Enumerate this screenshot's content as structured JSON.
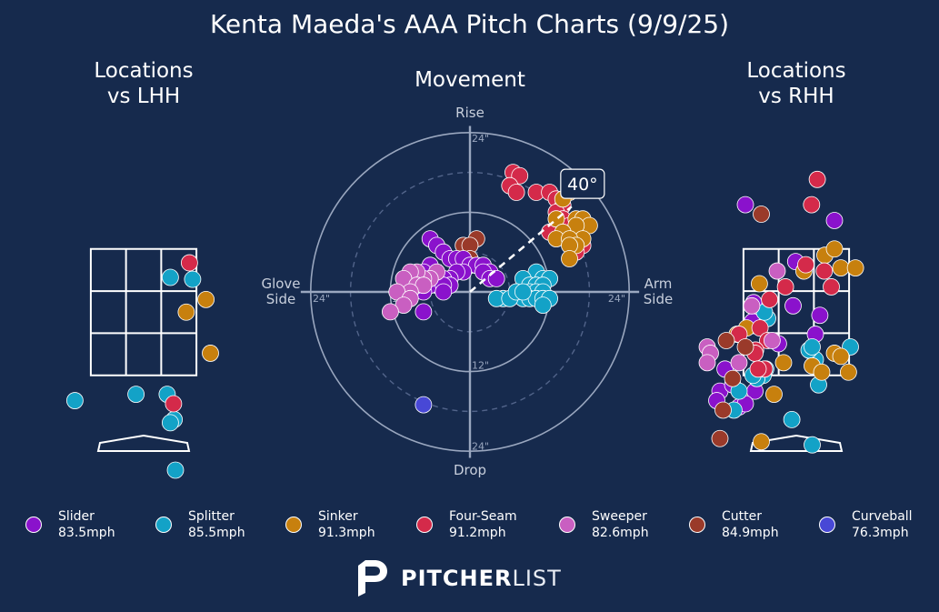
{
  "title": "Kenta Maeda's AAA Pitch Charts (9/9/25)",
  "panels": {
    "lhh_title_line1": "Locations",
    "lhh_title_line2": "vs LHH",
    "rhh_title_line1": "Locations",
    "rhh_title_line2": "vs RHH",
    "movement_title": "Movement"
  },
  "colors": {
    "background": "#162a4d",
    "Slider": "#8a12cc",
    "Splitter": "#13a2c7",
    "Sinker": "#c7800e",
    "Four-Seam": "#d42a4a",
    "Sweeper": "#c95fc1",
    "Cutter": "#9a3a2a",
    "Curveball": "#4848d6"
  },
  "legend": [
    {
      "name": "Slider",
      "speed": "83.5mph"
    },
    {
      "name": "Splitter",
      "speed": "85.5mph"
    },
    {
      "name": "Sinker",
      "speed": "91.3mph"
    },
    {
      "name": "Four-Seam",
      "speed": "91.2mph"
    },
    {
      "name": "Sweeper",
      "speed": "82.6mph"
    },
    {
      "name": "Cutter",
      "speed": "84.9mph"
    },
    {
      "name": "Curveball",
      "speed": "76.3mph"
    }
  ],
  "brand": {
    "bold": "PITCHER",
    "light": "LIST"
  },
  "chart_data": [
    {
      "type": "scatter",
      "title": "Locations vs LHH",
      "units": "feet",
      "xlim": [
        -2.0,
        2.0
      ],
      "ylim": [
        0.0,
        5.0
      ],
      "zone": {
        "x": [
          -0.83,
          0.83
        ],
        "z": [
          1.5,
          3.5
        ]
      },
      "series": [
        {
          "name": "Splitter",
          "points": [
            [
              0.42,
              3.05
            ],
            [
              0.77,
              3.02
            ],
            [
              -1.08,
              1.1
            ],
            [
              -0.12,
              1.2
            ],
            [
              0.37,
              1.2
            ],
            [
              0.48,
              0.8
            ],
            [
              0.42,
              0.75
            ],
            [
              0.5,
              0.0
            ]
          ]
        },
        {
          "name": "Four-Seam",
          "points": [
            [
              0.72,
              3.28
            ],
            [
              0.47,
              1.05
            ]
          ]
        },
        {
          "name": "Sinker",
          "points": [
            [
              0.67,
              2.5
            ],
            [
              0.98,
              2.7
            ],
            [
              1.05,
              1.85
            ]
          ]
        }
      ]
    },
    {
      "type": "scatter",
      "title": "Movement",
      "units": "inches",
      "xlabel_left": "Glove Side",
      "xlabel_right": "Arm Side",
      "ylabel_top": "Rise",
      "ylabel_bottom": "Drop",
      "rings": [
        12,
        24
      ],
      "ring_labels": [
        "12\"",
        "24\"",
        "12\"",
        "24\"",
        "24\"",
        "24\""
      ],
      "arm_angle_label": "40°",
      "arm_angle_deg": 40,
      "series": [
        {
          "name": "Four-Seam",
          "points": [
            [
              6.5,
              18
            ],
            [
              7.5,
              17.5
            ],
            [
              6,
              16
            ],
            [
              7,
              15
            ],
            [
              10,
              15
            ],
            [
              12,
              15
            ],
            [
              13,
              14
            ],
            [
              14,
              13
            ],
            [
              13,
              12
            ],
            [
              14,
              11
            ],
            [
              15,
              10
            ],
            [
              12,
              9
            ],
            [
              16,
              9
            ],
            [
              17,
              7
            ],
            [
              16,
              6
            ]
          ]
        },
        {
          "name": "Sinker",
          "points": [
            [
              15,
              15
            ],
            [
              14,
              14
            ],
            [
              13,
              11
            ],
            [
              16,
              11
            ],
            [
              17,
              11
            ],
            [
              18,
              10
            ],
            [
              16,
              10
            ],
            [
              14,
              9
            ],
            [
              17,
              8
            ],
            [
              13,
              8
            ],
            [
              15,
              8
            ],
            [
              16,
              7
            ],
            [
              15,
              7
            ],
            [
              15,
              5
            ]
          ]
        },
        {
          "name": "Cutter",
          "points": [
            [
              -1,
              7
            ],
            [
              1,
              8
            ],
            [
              0,
              7
            ],
            [
              0,
              5
            ]
          ]
        },
        {
          "name": "Slider",
          "points": [
            [
              -6,
              8
            ],
            [
              -5,
              7
            ],
            [
              -4,
              6
            ],
            [
              -3,
              5
            ],
            [
              -2,
              5
            ],
            [
              -1,
              5
            ],
            [
              0,
              4
            ],
            [
              1,
              4
            ],
            [
              2,
              4
            ],
            [
              3,
              3
            ],
            [
              2,
              3
            ],
            [
              -1,
              3
            ],
            [
              -2,
              3
            ],
            [
              -3,
              2
            ],
            [
              -4,
              2
            ],
            [
              -6,
              4
            ],
            [
              -7,
              3
            ],
            [
              -6,
              2
            ],
            [
              -5,
              1
            ],
            [
              -6,
              1
            ],
            [
              -7,
              1
            ],
            [
              -3,
              1
            ],
            [
              -4,
              1
            ],
            [
              -8,
              1
            ],
            [
              -7,
              0
            ],
            [
              -4,
              0
            ],
            [
              3,
              2
            ],
            [
              4,
              2
            ],
            [
              -7,
              -3
            ]
          ]
        },
        {
          "name": "Sweeper",
          "points": [
            [
              -5,
              3
            ],
            [
              -6,
              2
            ],
            [
              -7,
              2
            ],
            [
              -8,
              3
            ],
            [
              -9,
              3
            ],
            [
              -10,
              2
            ],
            [
              -8,
              1
            ],
            [
              -7,
              1
            ],
            [
              -9,
              0
            ],
            [
              -11,
              0
            ],
            [
              -9,
              -1
            ],
            [
              -10,
              -2
            ],
            [
              -12,
              -3
            ]
          ]
        },
        {
          "name": "Splitter",
          "points": [
            [
              10,
              3
            ],
            [
              11,
              2
            ],
            [
              12,
              2
            ],
            [
              8,
              2
            ],
            [
              9,
              1
            ],
            [
              10,
              1
            ],
            [
              11,
              1
            ],
            [
              9,
              0
            ],
            [
              10,
              0
            ],
            [
              11,
              0
            ],
            [
              7,
              0
            ],
            [
              8,
              -1
            ],
            [
              9,
              -1
            ],
            [
              10,
              -1
            ],
            [
              11,
              -1
            ],
            [
              12,
              -1
            ],
            [
              5,
              -1
            ],
            [
              4,
              -1
            ],
            [
              6,
              -1
            ],
            [
              7,
              0
            ],
            [
              8,
              0
            ],
            [
              11,
              -2
            ]
          ]
        },
        {
          "name": "Curveball",
          "points": [
            [
              -7,
              -17
            ]
          ]
        }
      ]
    },
    {
      "type": "scatter",
      "title": "Locations vs RHH",
      "units": "feet",
      "xlim": [
        -2.0,
        2.0
      ],
      "ylim": [
        0.0,
        5.0
      ],
      "zone": {
        "x": [
          -0.83,
          0.83
        ],
        "z": [
          1.5,
          3.5
        ]
      },
      "series": [
        {
          "name": "Slider",
          "points": [
            [
              -0.8,
              4.2
            ],
            [
              0.6,
              3.95
            ],
            [
              -0.01,
              3.3
            ],
            [
              0.37,
              2.45
            ],
            [
              -0.67,
              2.65
            ],
            [
              0.3,
              2.15
            ],
            [
              -0.05,
              2.6
            ],
            [
              -0.28,
              2.0
            ],
            [
              -0.69,
              2.35
            ],
            [
              -1.12,
              1.6
            ],
            [
              -1.2,
              1.25
            ],
            [
              -0.9,
              1.0
            ],
            [
              -0.65,
              1.25
            ],
            [
              -0.8,
              1.05
            ],
            [
              -1.25,
              1.1
            ],
            [
              -1.0,
              1.35
            ]
          ]
        },
        {
          "name": "Splitter",
          "points": [
            [
              -0.45,
              2.4
            ],
            [
              -0.5,
              2.5
            ],
            [
              -0.48,
              1.6
            ],
            [
              0.85,
              1.95
            ],
            [
              0.35,
              1.35
            ],
            [
              0.3,
              1.75
            ],
            [
              0.2,
              1.9
            ],
            [
              -0.52,
              1.5
            ],
            [
              -0.62,
              1.45
            ],
            [
              0.25,
              1.95
            ],
            [
              -0.9,
              1.25
            ],
            [
              -0.98,
              0.95
            ],
            [
              -0.62,
              1.45
            ],
            [
              -0.07,
              0.8
            ],
            [
              0.25,
              0.4
            ],
            [
              -0.68,
              1.5
            ]
          ]
        },
        {
          "name": "Sinker",
          "points": [
            [
              0.45,
              3.4
            ],
            [
              0.6,
              3.5
            ],
            [
              0.7,
              3.2
            ],
            [
              0.93,
              3.2
            ],
            [
              0.12,
              3.15
            ],
            [
              -0.58,
              2.95
            ],
            [
              -0.78,
              2.25
            ],
            [
              -0.93,
              2.15
            ],
            [
              -0.2,
              1.7
            ],
            [
              0.25,
              1.65
            ],
            [
              0.6,
              1.85
            ],
            [
              0.7,
              1.8
            ],
            [
              0.82,
              1.55
            ],
            [
              0.4,
              1.55
            ],
            [
              -0.35,
              1.2
            ],
            [
              -0.55,
              0.45
            ]
          ]
        },
        {
          "name": "Four-Seam",
          "points": [
            [
              0.33,
              4.6
            ],
            [
              0.24,
              4.2
            ],
            [
              0.15,
              3.25
            ],
            [
              0.44,
              3.15
            ],
            [
              0.55,
              2.9
            ],
            [
              -0.17,
              2.9
            ],
            [
              -0.42,
              2.7
            ],
            [
              -0.57,
              2.25
            ],
            [
              -0.45,
              2.05
            ],
            [
              -0.9,
              2.15
            ],
            [
              -0.64,
              1.9
            ],
            [
              -0.65,
              1.85
            ],
            [
              -0.5,
              1.6
            ],
            [
              -0.6,
              1.6
            ]
          ]
        },
        {
          "name": "Sweeper",
          "points": [
            [
              -0.3,
              3.15
            ],
            [
              -0.7,
              2.6
            ],
            [
              -0.38,
              2.05
            ],
            [
              -1.4,
              1.95
            ],
            [
              -1.35,
              1.85
            ],
            [
              -1.4,
              1.7
            ],
            [
              -0.9,
              1.7
            ]
          ]
        },
        {
          "name": "Cutter",
          "points": [
            [
              -0.55,
              4.05
            ],
            [
              -1.1,
              2.05
            ],
            [
              -0.8,
              1.95
            ],
            [
              -1.0,
              1.45
            ],
            [
              -1.15,
              0.95
            ],
            [
              -1.2,
              0.5
            ]
          ]
        }
      ]
    }
  ]
}
